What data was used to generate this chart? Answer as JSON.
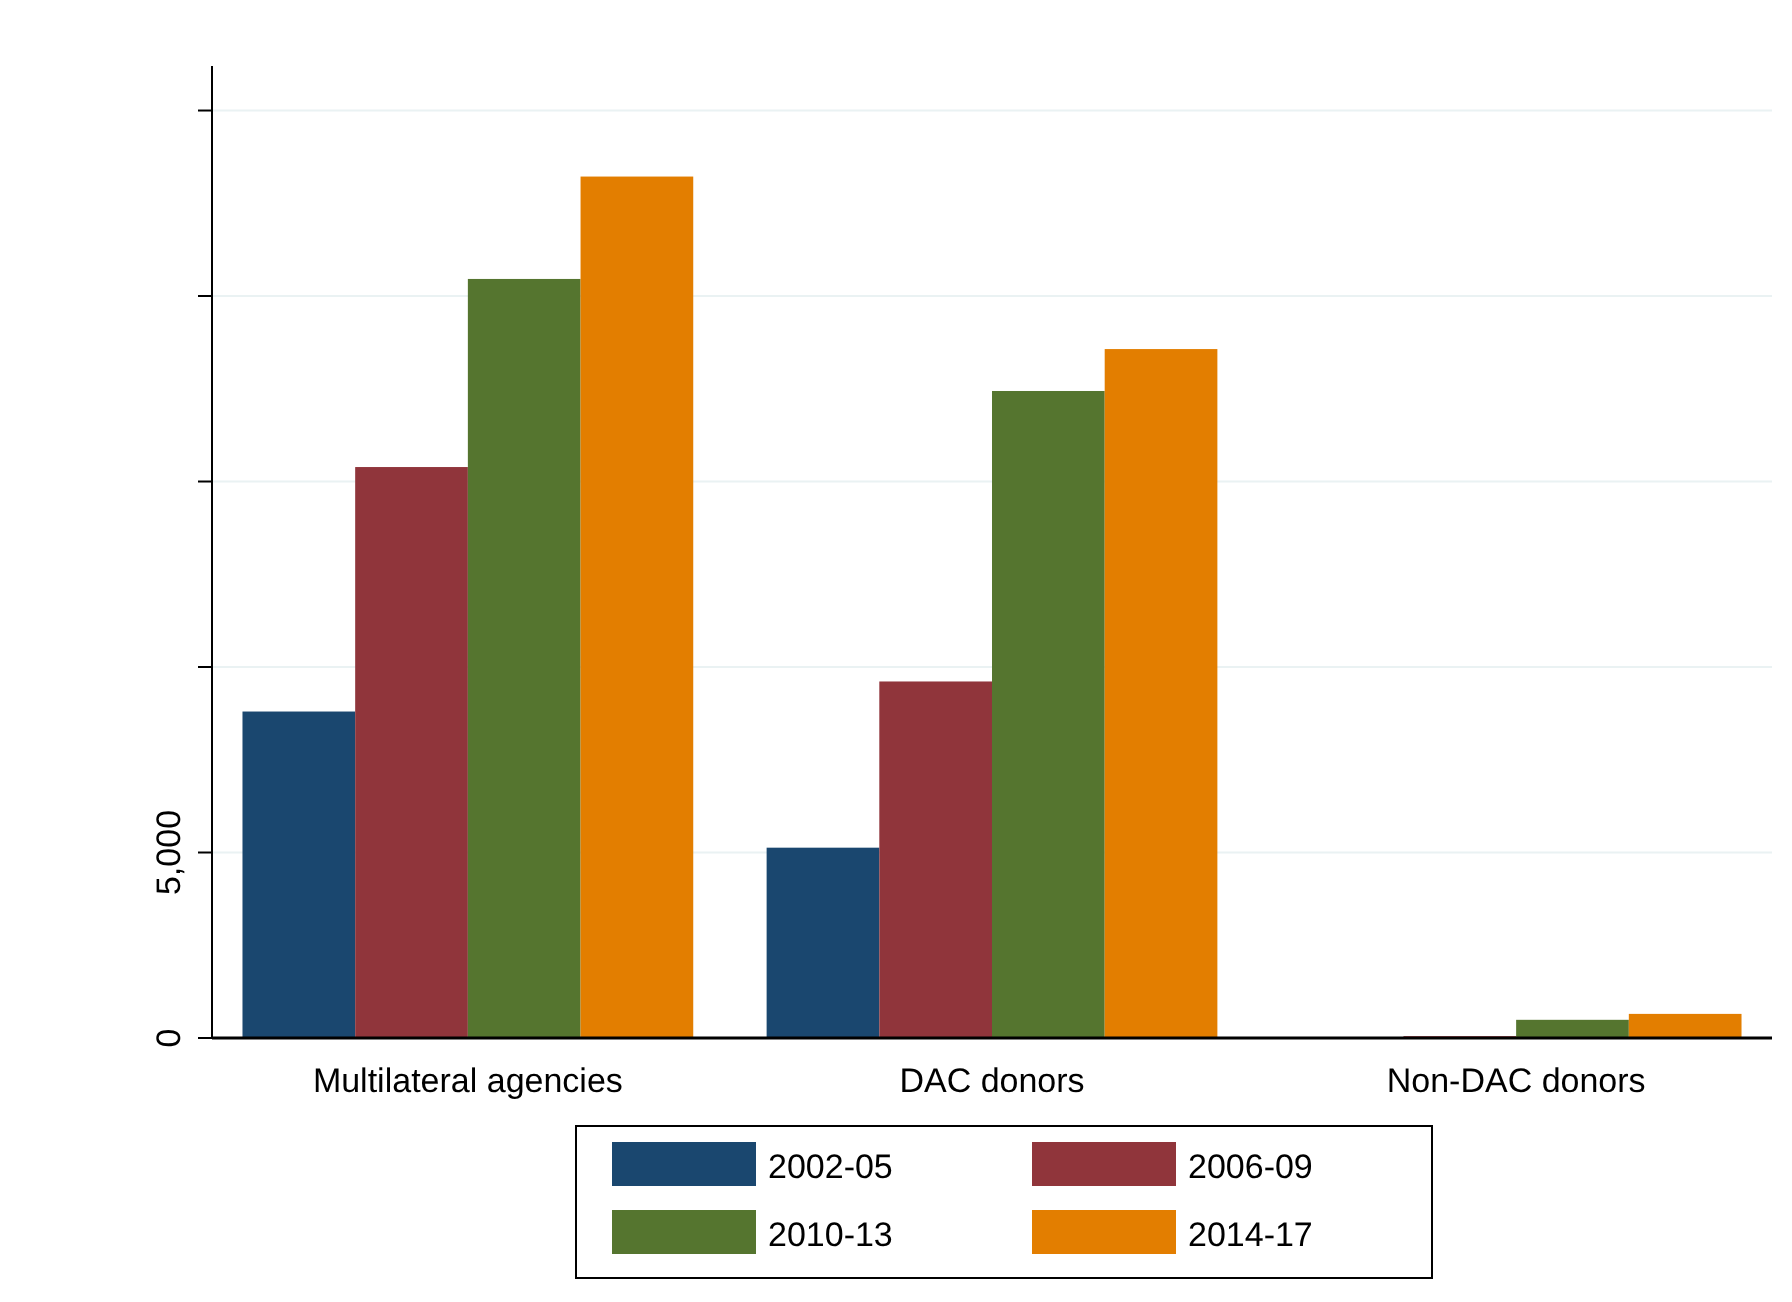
{
  "chart_data": {
    "type": "bar",
    "categories": [
      "Multilateral agencies",
      "DAC donors",
      "Non-DAC donors"
    ],
    "series": [
      {
        "name": "2002-05",
        "color": "#1a476f",
        "values": [
          8800,
          5130,
          0
        ]
      },
      {
        "name": "2006-09",
        "color": "#90353b",
        "values": [
          15390,
          9610,
          50
        ]
      },
      {
        "name": "2010-13",
        "color": "#55752f",
        "values": [
          20460,
          17440,
          490
        ]
      },
      {
        "name": "2014-17",
        "color": "#e37e00",
        "values": [
          23220,
          18570,
          650
        ]
      }
    ],
    "ylim": [
      0,
      26200
    ],
    "yticks": [
      0,
      {
        "value": 5000,
        "label": "5,000"
      },
      {
        "value": 10000,
        "label": null
      },
      {
        "value": 15000,
        "label": null
      },
      {
        "value": 20000,
        "label": null
      },
      {
        "value": 25000,
        "label": null
      }
    ],
    "grid": "y",
    "legend": "bottom"
  }
}
